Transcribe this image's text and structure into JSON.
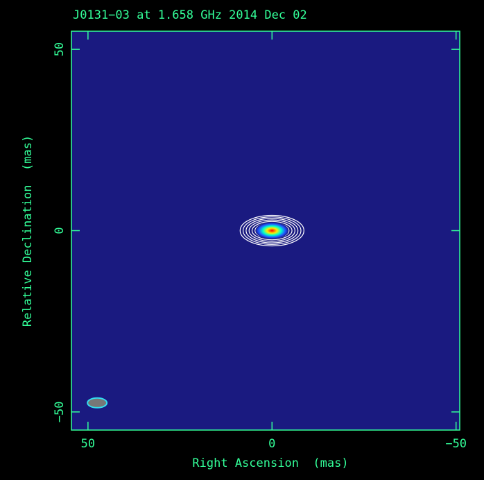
{
  "chart_data": {
    "type": "image",
    "title": "J0131−03 at 1.658 GHz 2014 Dec 02",
    "xlabel": "Right Ascension  (mas)",
    "ylabel": "Relative Declination  (mas)",
    "xlim": [
      54.5,
      -51
    ],
    "ylim": [
      -55,
      55
    ],
    "xticks": [
      50,
      0,
      {
        "value": -50,
        "label": "−50"
      }
    ],
    "yticks": [
      50,
      0,
      {
        "value": -50,
        "label": "−50"
      }
    ],
    "source": {
      "x": 0,
      "y": 0
    },
    "beam": {
      "x": 47.5,
      "y": -47.5
    },
    "background": "#1a1a80",
    "color": "#33ff99"
  }
}
